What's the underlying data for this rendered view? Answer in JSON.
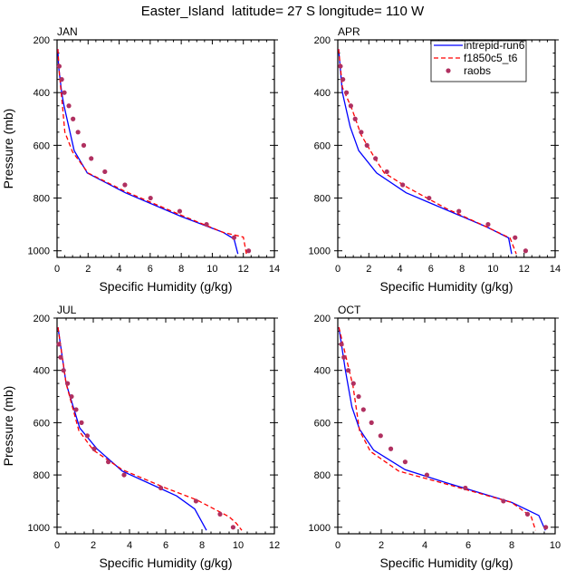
{
  "title": "Easter_Island  latitude= 27 S longitude= 110 W",
  "legend": {
    "placement": "top-right of APR panel",
    "entries": [
      {
        "label": "intrepid-run6",
        "style": "solid",
        "color": "#0000ff"
      },
      {
        "label": "f1850c5_t6",
        "style": "dashed",
        "color": "#ff0000"
      },
      {
        "label": "raobs",
        "style": "marker",
        "color": "#b03060"
      }
    ]
  },
  "chart_data": [
    {
      "type": "line",
      "panel": "JAN",
      "title": "JAN",
      "xlabel": "Specific Humidity (g/kg)",
      "ylabel": "Pressure (mb)",
      "xlim": [
        0,
        14
      ],
      "ylim": [
        1025,
        200
      ],
      "xticks": [
        "0",
        "2",
        "4",
        "6",
        "8",
        "10",
        "12",
        "14"
      ],
      "yticks": [
        "200",
        "400",
        "600",
        "800",
        "1000"
      ],
      "series": [
        {
          "name": "intrepid-run6",
          "x": [
            0.05,
            0.1,
            0.3,
            0.45,
            1.1,
            1.95,
            4.4,
            8.0,
            10.7,
            11.4,
            11.65
          ],
          "p": [
            235,
            300,
            400,
            450,
            620,
            705,
            780,
            870,
            930,
            955,
            1012
          ]
        },
        {
          "name": "f1850c5_t6",
          "x": [
            0.05,
            0.15,
            0.35,
            0.5,
            1.0,
            2.0,
            4.4,
            8.0,
            10.7,
            12.0,
            12.2
          ],
          "p": [
            235,
            330,
            450,
            550,
            625,
            705,
            775,
            865,
            930,
            948,
            1012
          ]
        },
        {
          "name": "raobs",
          "x": [
            0.14,
            0.3,
            0.47,
            0.76,
            1.03,
            1.35,
            1.72,
            2.2,
            3.08,
            4.37,
            6.02,
            7.9,
            9.63,
            11.4,
            12.34
          ],
          "p": [
            300,
            350,
            400,
            450,
            500,
            550,
            600,
            650,
            700,
            750,
            800,
            850,
            900,
            950,
            1000
          ]
        }
      ]
    },
    {
      "type": "line",
      "panel": "APR",
      "title": "APR",
      "xlabel": "Specific Humidity (g/kg)",
      "ylabel": "",
      "xlim": [
        0,
        14
      ],
      "ylim": [
        1025,
        200
      ],
      "xticks": [
        "0",
        "2",
        "4",
        "6",
        "8",
        "10",
        "12",
        "14"
      ],
      "yticks": [
        "200",
        "400",
        "600",
        "800",
        "1000"
      ],
      "series": [
        {
          "name": "intrepid-run6",
          "x": [
            0.05,
            0.3,
            0.8,
            1.35,
            2.5,
            4.4,
            6.0,
            9.6,
            11.0,
            11.2
          ],
          "p": [
            235,
            400,
            530,
            620,
            705,
            780,
            820,
            910,
            951,
            1012
          ]
        },
        {
          "name": "f1850c5_t6",
          "x": [
            0.05,
            0.3,
            0.9,
            1.5,
            2.4,
            3.0,
            4.5,
            7.0,
            9.6,
            11.1,
            11.5
          ],
          "p": [
            235,
            380,
            460,
            560,
            650,
            705,
            760,
            840,
            910,
            952,
            1012
          ]
        },
        {
          "name": "raobs",
          "x": [
            0.17,
            0.33,
            0.56,
            0.84,
            1.12,
            1.51,
            1.88,
            2.43,
            3.16,
            4.18,
            5.88,
            7.8,
            9.68,
            11.42,
            12.1
          ],
          "p": [
            300,
            350,
            400,
            450,
            500,
            550,
            600,
            650,
            700,
            750,
            800,
            850,
            900,
            950,
            1000
          ]
        }
      ]
    },
    {
      "type": "line",
      "panel": "JUL",
      "title": "JUL",
      "xlabel": "Specific Humidity (g/kg)",
      "ylabel": "Pressure (mb)",
      "xlim": [
        0,
        12
      ],
      "ylim": [
        1025,
        200
      ],
      "xticks": [
        "0",
        "2",
        "4",
        "6",
        "8",
        "10",
        "12"
      ],
      "yticks": [
        "200",
        "400",
        "600",
        "800",
        "1000"
      ],
      "series": [
        {
          "name": "intrepid-run6",
          "x": [
            0.05,
            0.5,
            1.25,
            2.2,
            3.6,
            5.5,
            6.6,
            7.6,
            8.25
          ],
          "p": [
            235,
            450,
            620,
            700,
            785,
            845,
            880,
            930,
            1012
          ]
        },
        {
          "name": "f1850c5_t6",
          "x": [
            0.05,
            0.5,
            1.2,
            2.0,
            3.6,
            6.0,
            7.7,
            9.5,
            9.9,
            10.2
          ],
          "p": [
            235,
            450,
            630,
            705,
            780,
            850,
            895,
            960,
            985,
            1012
          ]
        },
        {
          "name": "raobs",
          "x": [
            0.1,
            0.2,
            0.36,
            0.58,
            0.8,
            1.05,
            1.35,
            1.67,
            2.05,
            2.83,
            3.7,
            5.73,
            7.67,
            9.0,
            9.72
          ],
          "p": [
            300,
            350,
            400,
            450,
            500,
            550,
            600,
            650,
            700,
            750,
            800,
            850,
            900,
            950,
            1000
          ]
        }
      ]
    },
    {
      "type": "line",
      "panel": "OCT",
      "title": "OCT",
      "xlabel": "Specific Humidity (g/kg)",
      "ylabel": "",
      "xlim": [
        0,
        10
      ],
      "ylim": [
        1025,
        200
      ],
      "xticks": [
        "0",
        "2",
        "4",
        "6",
        "8",
        "10"
      ],
      "yticks": [
        "200",
        "400",
        "600",
        "800",
        "1000"
      ],
      "series": [
        {
          "name": "intrepid-run6",
          "x": [
            0.05,
            0.35,
            0.65,
            1.0,
            1.65,
            3.1,
            5.0,
            8.0,
            9.25,
            9.55
          ],
          "p": [
            235,
            400,
            540,
            625,
            705,
            780,
            830,
            905,
            955,
            1012
          ]
        },
        {
          "name": "f1850c5_t6",
          "x": [
            0.05,
            0.7,
            1.0,
            1.5,
            2.8,
            5.0,
            8.0,
            8.9,
            9.1
          ],
          "p": [
            235,
            460,
            630,
            710,
            785,
            835,
            905,
            960,
            1012
          ]
        },
        {
          "name": "raobs",
          "x": [
            0.17,
            0.28,
            0.48,
            0.72,
            0.96,
            1.18,
            1.55,
            1.97,
            2.44,
            3.1,
            4.1,
            5.87,
            7.62,
            8.73,
            9.57
          ],
          "p": [
            300,
            350,
            400,
            450,
            500,
            550,
            600,
            650,
            700,
            750,
            800,
            850,
            900,
            950,
            1000
          ]
        }
      ]
    }
  ]
}
